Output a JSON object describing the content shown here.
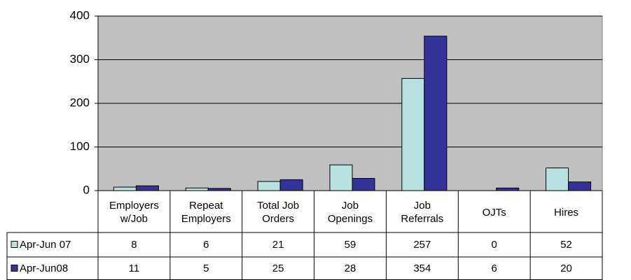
{
  "chart_data": {
    "type": "bar",
    "categories": [
      "Employers w/Job",
      "Repeat Employers",
      "Total Job Orders",
      "Job Openings",
      "Job Referrals",
      "OJTs",
      "Hires"
    ],
    "series": [
      {
        "name": "Apr-Jun 07",
        "color": "#b8e2e2",
        "values": [
          8,
          6,
          21,
          59,
          257,
          0,
          52
        ]
      },
      {
        "name": "Apr-Jun08",
        "color": "#333399",
        "values": [
          11,
          5,
          25,
          28,
          354,
          6,
          20
        ]
      }
    ],
    "ylim": [
      0,
      400
    ],
    "yticks": [
      0,
      100,
      200,
      300,
      400
    ],
    "grid": true,
    "plot_background": "#c0c0c0"
  }
}
